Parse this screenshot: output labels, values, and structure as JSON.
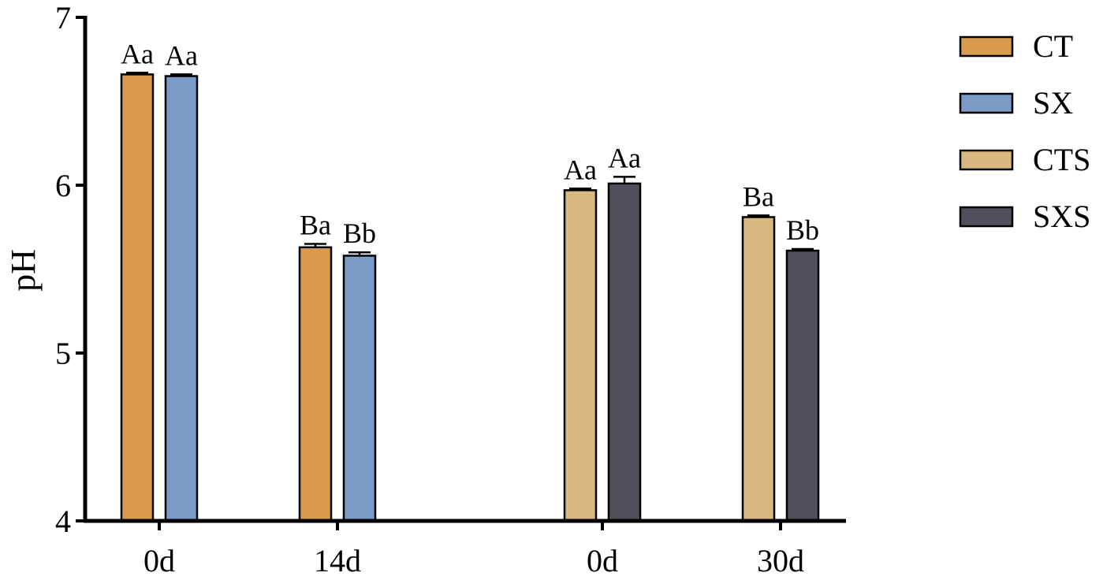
{
  "chart_data": {
    "type": "bar",
    "xlabel": "",
    "ylabel": "pH",
    "ylim": [
      4,
      7
    ],
    "yticks": [
      4,
      5,
      6,
      7
    ],
    "grid": false,
    "legend_position": "top-right",
    "series": [
      {
        "name": "CT",
        "color": "#D99B4E"
      },
      {
        "name": "SX",
        "color": "#7B9AC6"
      },
      {
        "name": "CTS",
        "color": "#D8B880"
      },
      {
        "name": "SXS",
        "color": "#524F5B"
      }
    ],
    "groups": [
      {
        "label": "0d",
        "bars": [
          {
            "series": "CT",
            "value": 6.66,
            "error": 0.01,
            "sig": "Aa"
          },
          {
            "series": "SX",
            "value": 6.65,
            "error": 0.01,
            "sig": "Aa"
          }
        ]
      },
      {
        "label": "14d",
        "bars": [
          {
            "series": "CT",
            "value": 5.63,
            "error": 0.02,
            "sig": "Ba"
          },
          {
            "series": "SX",
            "value": 5.58,
            "error": 0.02,
            "sig": "Bb"
          }
        ]
      },
      {
        "label": "0d",
        "bars": [
          {
            "series": "CTS",
            "value": 5.97,
            "error": 0.01,
            "sig": "Aa"
          },
          {
            "series": "SXS",
            "value": 6.01,
            "error": 0.04,
            "sig": "Aa"
          }
        ]
      },
      {
        "label": "30d",
        "bars": [
          {
            "series": "CTS",
            "value": 5.81,
            "error": 0.01,
            "sig": "Ba"
          },
          {
            "series": "SXS",
            "value": 5.61,
            "error": 0.01,
            "sig": "Bb"
          }
        ]
      }
    ]
  }
}
